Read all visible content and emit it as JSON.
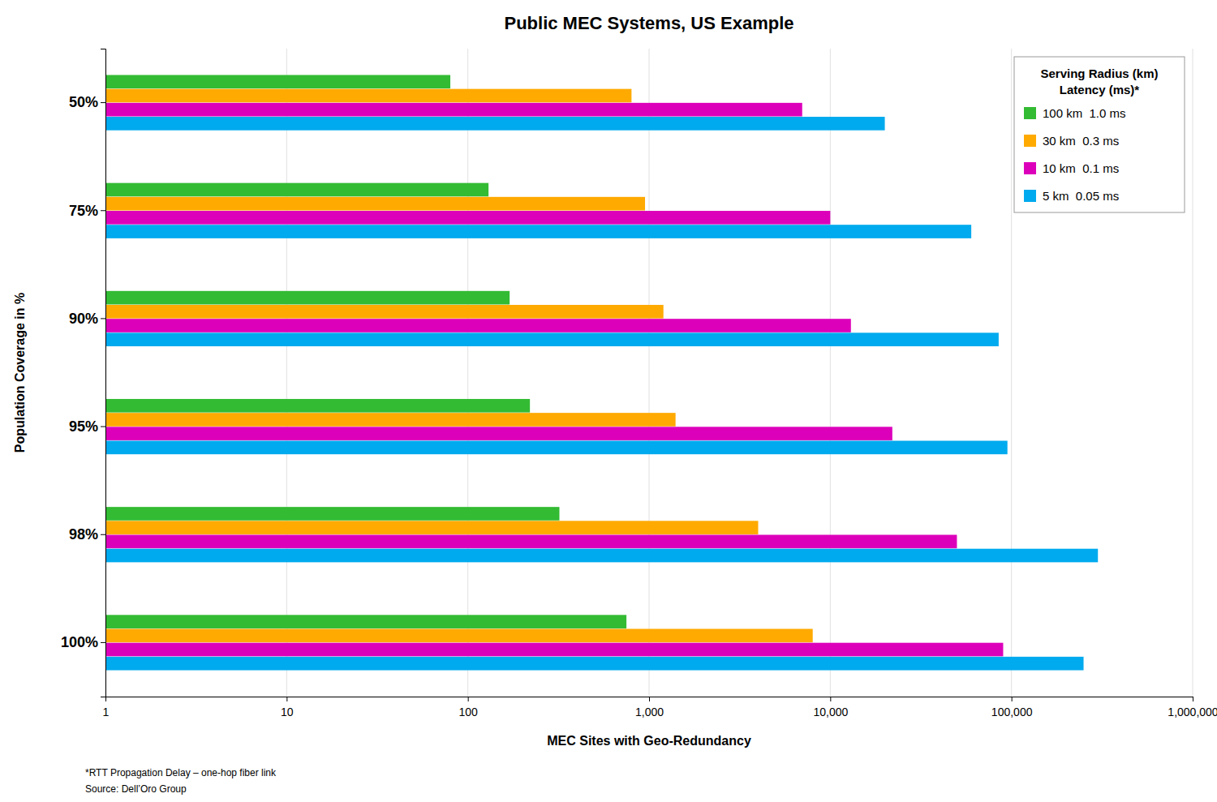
{
  "chart_data": {
    "type": "bar",
    "orientation": "horizontal",
    "title": "Public MEC Systems, US Example",
    "xlabel": "MEC Sites with Geo-Redundancy",
    "ylabel": "Population Coverage in %",
    "categories": [
      "50%",
      "75%",
      "90%",
      "95%",
      "98%",
      "100%"
    ],
    "series": [
      {
        "name": "100 km  1.0 ms",
        "color": "#33bb33",
        "values": [
          80,
          130,
          170,
          220,
          320,
          750
        ]
      },
      {
        "name": "30 km  0.3 ms",
        "color": "#ffaa00",
        "values": [
          800,
          950,
          1200,
          1400,
          4000,
          8000
        ]
      },
      {
        "name": "10 km  0.1 ms",
        "color": "#dd00bb",
        "values": [
          7000,
          10000,
          13000,
          22000,
          50000,
          90000
        ]
      },
      {
        "name": "5 km  0.05 ms",
        "color": "#00aaee",
        "values": [
          20000,
          60000,
          85000,
          95000,
          300000,
          250000
        ]
      }
    ],
    "log": "x",
    "xlim": [
      1,
      1000000
    ],
    "xticks": [
      1,
      10,
      100,
      {
        "value": 1000,
        "label": "1,000"
      },
      {
        "value": 10000,
        "label": "10,000"
      },
      {
        "value": 100000,
        "label": "100,000"
      },
      {
        "value": 1000000,
        "label": "1,000,000"
      }
    ],
    "grid": true,
    "legend": "upper right",
    "legend_title": "Serving Radius (km)\n    Latency (ms)*",
    "annotations": [
      "*RTT Propagation Delay – one-hop fiber link",
      "Source: Dell’Oro Group"
    ]
  }
}
